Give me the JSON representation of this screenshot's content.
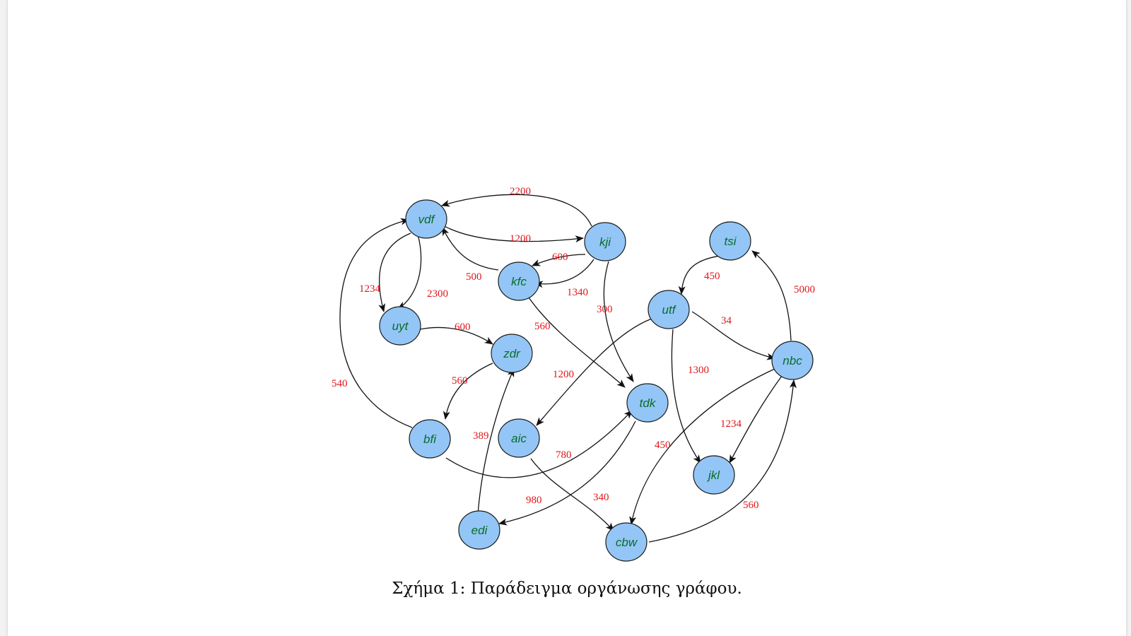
{
  "figure": {
    "caption_prefix": "Σχήμα 1:",
    "caption_text": "Παράδειγμα οργάνωσης γράφου."
  },
  "colors": {
    "node_fill": "#93c6f6",
    "node_text": "#0a6b2a",
    "edge_label": "#e0161b",
    "edge": "#111111"
  },
  "nodes": {
    "vdf": "vdf",
    "kji": "kji",
    "kfc": "kfc",
    "uyt": "uyt",
    "zdr": "zdr",
    "bfi": "bfi",
    "aic": "aic",
    "edi": "edi",
    "tdk": "tdk",
    "cbw": "cbw",
    "tsi": "tsi",
    "utf": "utf",
    "nbc": "nbc",
    "jkl": "jkl"
  },
  "edges": [
    {
      "from": "kji",
      "to": "vdf",
      "weight": "2200"
    },
    {
      "from": "vdf",
      "to": "kji",
      "weight": "1200"
    },
    {
      "from": "kji",
      "to": "kfc",
      "weight": "600"
    },
    {
      "from": "kji",
      "to": "kfc",
      "weight": "1340"
    },
    {
      "from": "kfc",
      "to": "vdf",
      "weight": "500"
    },
    {
      "from": "vdf",
      "to": "uyt",
      "weight": "1234"
    },
    {
      "from": "vdf",
      "to": "uyt",
      "weight": "2300"
    },
    {
      "from": "uyt",
      "to": "zdr",
      "weight": "600"
    },
    {
      "from": "kji",
      "to": "tdk",
      "weight": "300"
    },
    {
      "from": "kfc",
      "to": "tdk",
      "weight": "560"
    },
    {
      "from": "zdr",
      "to": "bfi",
      "weight": "560"
    },
    {
      "from": "bfi",
      "to": "vdf",
      "weight": "540"
    },
    {
      "from": "edi",
      "to": "zdr",
      "weight": "389"
    },
    {
      "from": "bfi",
      "to": "tdk",
      "weight": "780"
    },
    {
      "from": "tdk",
      "to": "edi",
      "weight": "980"
    },
    {
      "from": "aic",
      "to": "cbw",
      "weight": "340"
    },
    {
      "from": "utf",
      "to": "aic",
      "weight": "1200"
    },
    {
      "from": "tsi",
      "to": "utf",
      "weight": "450"
    },
    {
      "from": "utf",
      "to": "nbc",
      "weight": "34"
    },
    {
      "from": "utf",
      "to": "jkl",
      "weight": "1300"
    },
    {
      "from": "nbc",
      "to": "tsi",
      "weight": "5000"
    },
    {
      "from": "nbc",
      "to": "jkl",
      "weight": "1234"
    },
    {
      "from": "nbc",
      "to": "cbw",
      "weight": "450"
    },
    {
      "from": "cbw",
      "to": "nbc",
      "weight": "560"
    }
  ]
}
